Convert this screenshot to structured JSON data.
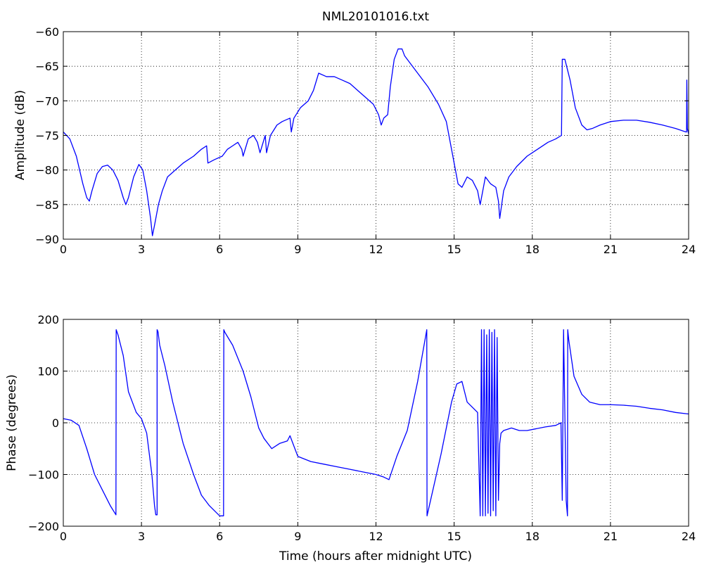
{
  "chart_data": [
    {
      "type": "line",
      "title": "NML20101016.txt",
      "xlabel": "",
      "ylabel": "Amplitude (dB)",
      "xlim": [
        0,
        24
      ],
      "ylim": [
        -90,
        -60
      ],
      "xticks": [
        0,
        3,
        6,
        9,
        12,
        15,
        18,
        21,
        24
      ],
      "yticks": [
        -90,
        -85,
        -80,
        -75,
        -70,
        -65,
        -60
      ],
      "grid": true,
      "color": "#0000ff",
      "series": [
        {
          "x": [
            0,
            0.25,
            0.5,
            0.75,
            0.9,
            1.0,
            1.1,
            1.3,
            1.5,
            1.7,
            1.9,
            2.1,
            2.3,
            2.4,
            2.5,
            2.7,
            2.9,
            3.05,
            3.2,
            3.35,
            3.42,
            3.5,
            3.65,
            3.8,
            4.0,
            4.3,
            4.6,
            5.0,
            5.3,
            5.5,
            5.55,
            5.8,
            6.1,
            6.3,
            6.5,
            6.7,
            6.85,
            6.9,
            7.1,
            7.3,
            7.45,
            7.55,
            7.75,
            7.8,
            7.95,
            8.2,
            8.4,
            8.7,
            8.75,
            8.85,
            9.1,
            9.4,
            9.6,
            9.8,
            10.1,
            10.4,
            10.7,
            11.0,
            11.3,
            11.6,
            11.9,
            12.1,
            12.2,
            12.3,
            12.45,
            12.55,
            12.7,
            12.85,
            13.0,
            13.1,
            13.3,
            13.6,
            14.0,
            14.4,
            14.7,
            14.9,
            15.05,
            15.15,
            15.3,
            15.5,
            15.7,
            15.9,
            16.0,
            16.1,
            16.2,
            16.4,
            16.6,
            16.7,
            16.75,
            16.9,
            17.1,
            17.4,
            17.8,
            18.2,
            18.6,
            18.9,
            19.12,
            19.15,
            19.25,
            19.45,
            19.65,
            19.9,
            20.1,
            20.3,
            20.6,
            21.0,
            21.5,
            22.0,
            22.5,
            23.0,
            23.5,
            23.9,
            23.92,
            23.93,
            23.95,
            24.0
          ],
          "y": [
            -74.5,
            -75.5,
            -78,
            -82,
            -84,
            -84.5,
            -83,
            -80.5,
            -79.5,
            -79.3,
            -80,
            -81.5,
            -84,
            -85,
            -84,
            -81,
            -79.2,
            -80,
            -83,
            -87,
            -89.5,
            -88,
            -85,
            -83,
            -81,
            -80,
            -79,
            -78,
            -77,
            -76.5,
            -79,
            -78.5,
            -78,
            -77,
            -76.5,
            -76,
            -77,
            -78,
            -75.5,
            -75,
            -76,
            -77.5,
            -75,
            -77.5,
            -75,
            -73.5,
            -73,
            -72.5,
            -74.5,
            -72.5,
            -71,
            -70,
            -68.5,
            -66,
            -66.5,
            -66.5,
            -67,
            -67.5,
            -68.5,
            -69.5,
            -70.5,
            -72,
            -73.5,
            -72.5,
            -72,
            -68,
            -64,
            -62.5,
            -62.5,
            -63.5,
            -64.5,
            -66,
            -68,
            -70.5,
            -73,
            -77,
            -80,
            -82,
            -82.5,
            -81,
            -81.5,
            -83,
            -85,
            -83,
            -81,
            -82,
            -82.5,
            -84.5,
            -87,
            -83,
            -81,
            -79.5,
            -78,
            -77,
            -76,
            -75.5,
            -75,
            -64,
            -64,
            -67,
            -71,
            -73.5,
            -74.2,
            -74,
            -73.5,
            -73,
            -72.8,
            -72.8,
            -73.1,
            -73.5,
            -74,
            -74.5,
            -74.5,
            -67,
            -74,
            -74.8
          ]
        }
      ]
    },
    {
      "type": "line",
      "title": "",
      "xlabel": "Time (hours after midnight UTC)",
      "ylabel": "Phase (degrees)",
      "xlim": [
        0,
        24
      ],
      "ylim": [
        -200,
        200
      ],
      "xticks": [
        0,
        3,
        6,
        9,
        12,
        15,
        18,
        21,
        24
      ],
      "yticks": [
        -200,
        -100,
        0,
        100,
        200
      ],
      "grid": true,
      "color": "#0000ff",
      "series": [
        {
          "x": [
            0,
            0.3,
            0.6,
            0.9,
            1.2,
            1.5,
            1.8,
            2.02,
            2.03,
            2.1,
            2.3,
            2.5,
            2.8,
            3.0,
            3.2,
            3.4,
            3.5,
            3.55,
            3.6,
            3.6,
            3.62,
            3.64,
            3.65,
            3.7,
            3.9,
            4.2,
            4.6,
            5.0,
            5.3,
            5.6,
            5.8,
            6.0,
            6.15,
            6.16,
            6.2,
            6.5,
            6.9,
            7.2,
            7.5,
            7.7,
            8.0,
            8.3,
            8.6,
            8.7,
            9.0,
            9.5,
            10.0,
            10.5,
            11.0,
            11.5,
            12.0,
            12.3,
            12.5,
            12.8,
            13.2,
            13.6,
            13.95,
            13.96,
            14.5,
            14.9,
            15.1,
            15.3,
            15.5,
            15.7,
            15.9,
            16.0,
            16.05,
            16.1,
            16.15,
            16.2,
            16.25,
            16.3,
            16.35,
            16.4,
            16.45,
            16.5,
            16.55,
            16.6,
            16.65,
            16.7,
            16.75,
            16.8,
            16.9,
            17.2,
            17.5,
            17.8,
            18.1,
            18.5,
            18.9,
            19.1,
            19.15,
            19.2,
            19.3,
            19.35,
            19.36,
            19.4,
            19.6,
            19.9,
            20.2,
            20.6,
            21.0,
            21.5,
            22.0,
            22.5,
            23.0,
            23.5,
            24.0
          ],
          "y": [
            8,
            5,
            -5,
            -50,
            -100,
            -130,
            -160,
            -178,
            180,
            170,
            130,
            60,
            20,
            8,
            -20,
            -100,
            -160,
            -178,
            -178,
            180,
            178,
            175,
            170,
            150,
            110,
            40,
            -40,
            -100,
            -140,
            -160,
            -170,
            -180,
            -180,
            180,
            175,
            150,
            100,
            50,
            -10,
            -30,
            -50,
            -40,
            -35,
            -25,
            -65,
            -75,
            -80,
            -85,
            -90,
            -95,
            -100,
            -105,
            -110,
            -65,
            -15,
            80,
            180,
            -180,
            -60,
            40,
            75,
            80,
            40,
            30,
            20,
            -180,
            180,
            -180,
            180,
            -180,
            170,
            -175,
            180,
            -180,
            175,
            -170,
            180,
            -180,
            165,
            -150,
            -40,
            -20,
            -15,
            -10,
            -15,
            -15,
            -12,
            -8,
            -5,
            0,
            -150,
            180,
            -150,
            -180,
            180,
            160,
            90,
            55,
            40,
            35,
            35,
            34,
            32,
            28,
            25,
            20,
            17
          ]
        }
      ]
    }
  ]
}
